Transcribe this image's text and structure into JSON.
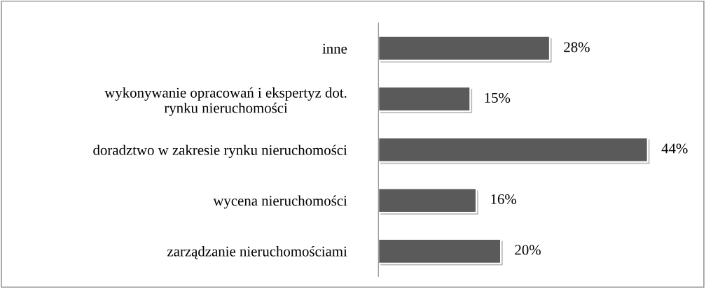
{
  "chart_data": {
    "type": "bar",
    "orientation": "horizontal",
    "categories": [
      "inne",
      "wykonywanie opracowań i ekspertyz dot.\nrynku nieruchomości",
      "doradztwo w zakresie rynku nieruchomości",
      "wycena nieruchomości",
      "zarządzanie nieruchomościami"
    ],
    "values": [
      28,
      15,
      44,
      16,
      20
    ],
    "value_labels": [
      "28%",
      "15%",
      "44%",
      "16%",
      "20%"
    ],
    "color": "#5a5a5a",
    "grid": false,
    "legend": false
  }
}
